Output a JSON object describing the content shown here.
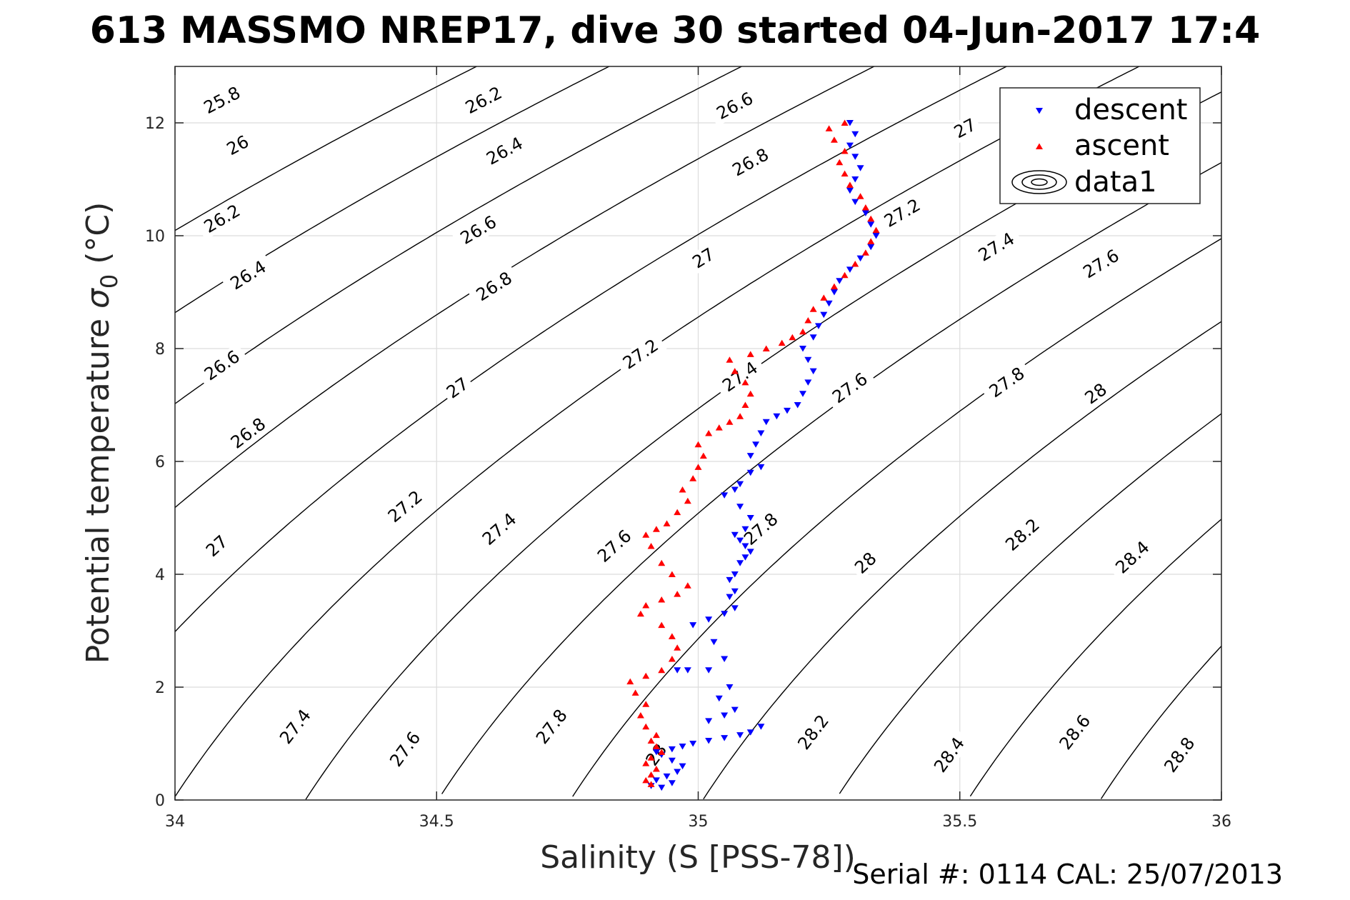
{
  "chart_data": {
    "type": "scatter",
    "title": "613 MASSMO NREP17, dive 30 started 04-Jun-2017 17:4",
    "xlabel": "Salinity (S [PSS-78])",
    "ylabel_main": "Potential temperature ",
    "ylabel_sigma": "σ",
    "ylabel_sub": "0",
    "ylabel_unit": " (°C)",
    "xlim": [
      34,
      36
    ],
    "ylim": [
      0,
      13
    ],
    "xticks": [
      34,
      34.5,
      35,
      35.5,
      36
    ],
    "xtick_labels": [
      "34",
      "34.5",
      "35",
      "35.5",
      "36"
    ],
    "yticks": [
      0,
      2,
      4,
      6,
      8,
      10,
      12
    ],
    "ytick_labels": [
      "0",
      "2",
      "4",
      "6",
      "8",
      "10",
      "12"
    ],
    "grid": true,
    "legend_position": "top-right",
    "legend": [
      "descent",
      "ascent",
      "data1"
    ],
    "density_contour_levels": [
      25.8,
      26,
      26.2,
      26.4,
      26.6,
      26.8,
      27,
      27.2,
      27.4,
      27.6,
      27.8,
      28,
      28.2,
      28.4,
      28.6,
      28.8
    ],
    "density_contour_labels": [
      {
        "text": "25.8",
        "x": 34.09,
        "y": 12.4
      },
      {
        "text": "26",
        "x": 34.12,
        "y": 11.6
      },
      {
        "text": "26.2",
        "x": 34.09,
        "y": 10.3
      },
      {
        "text": "26.4",
        "x": 34.14,
        "y": 9.3
      },
      {
        "text": "26.6",
        "x": 34.09,
        "y": 7.7
      },
      {
        "text": "26.8",
        "x": 34.14,
        "y": 6.5
      },
      {
        "text": "27",
        "x": 34.08,
        "y": 4.5
      },
      {
        "text": "27.4",
        "x": 34.23,
        "y": 1.3
      },
      {
        "text": "26.2",
        "x": 34.59,
        "y": 12.4
      },
      {
        "text": "26.4",
        "x": 34.63,
        "y": 11.5
      },
      {
        "text": "26.6",
        "x": 34.58,
        "y": 10.1
      },
      {
        "text": "26.8",
        "x": 34.61,
        "y": 9.1
      },
      {
        "text": "27",
        "x": 34.54,
        "y": 7.3
      },
      {
        "text": "27.2",
        "x": 34.44,
        "y": 5.2
      },
      {
        "text": "27.4",
        "x": 34.62,
        "y": 4.8
      },
      {
        "text": "27.6",
        "x": 34.44,
        "y": 0.9
      },
      {
        "text": "27.6",
        "x": 34.84,
        "y": 4.5
      },
      {
        "text": "27.8",
        "x": 34.72,
        "y": 1.3
      },
      {
        "text": "26.6",
        "x": 35.07,
        "y": 12.3
      },
      {
        "text": "26.8",
        "x": 35.1,
        "y": 11.3
      },
      {
        "text": "27",
        "x": 35.01,
        "y": 9.6
      },
      {
        "text": "27.2",
        "x": 34.89,
        "y": 7.9
      },
      {
        "text": "27.4",
        "x": 35.08,
        "y": 7.5
      },
      {
        "text": "27.8",
        "x": 35.12,
        "y": 4.8
      },
      {
        "text": "27.6",
        "x": 35.29,
        "y": 7.3
      },
      {
        "text": "28",
        "x": 34.92,
        "y": 0.8
      },
      {
        "text": "27",
        "x": 35.51,
        "y": 11.9
      },
      {
        "text": "27.2",
        "x": 35.39,
        "y": 10.4
      },
      {
        "text": "27.4",
        "x": 35.57,
        "y": 9.8
      },
      {
        "text": "27.6",
        "x": 35.77,
        "y": 9.5
      },
      {
        "text": "27.8",
        "x": 35.59,
        "y": 7.4
      },
      {
        "text": "28",
        "x": 35.76,
        "y": 7.2
      },
      {
        "text": "28",
        "x": 35.32,
        "y": 4.2
      },
      {
        "text": "28.2",
        "x": 35.62,
        "y": 4.7
      },
      {
        "text": "28.4",
        "x": 35.83,
        "y": 4.3
      },
      {
        "text": "28.2",
        "x": 35.22,
        "y": 1.2
      },
      {
        "text": "28.4",
        "x": 35.48,
        "y": 0.8
      },
      {
        "text": "28.6",
        "x": 35.72,
        "y": 1.2
      },
      {
        "text": "28.8",
        "x": 35.92,
        "y": 0.8
      }
    ],
    "series": [
      {
        "name": "descent",
        "color": "#0000ff",
        "marker": "triangle-down",
        "points": [
          [
            34.91,
            0.25
          ],
          [
            34.93,
            0.22
          ],
          [
            34.95,
            0.3
          ],
          [
            34.92,
            0.35
          ],
          [
            34.94,
            0.42
          ],
          [
            34.96,
            0.5
          ],
          [
            34.97,
            0.6
          ],
          [
            34.95,
            0.7
          ],
          [
            34.93,
            0.8
          ],
          [
            34.92,
            0.85
          ],
          [
            34.95,
            0.9
          ],
          [
            34.97,
            0.95
          ],
          [
            34.99,
            1.0
          ],
          [
            35.02,
            1.05
          ],
          [
            35.05,
            1.1
          ],
          [
            35.08,
            1.15
          ],
          [
            35.1,
            1.2
          ],
          [
            35.12,
            1.3
          ],
          [
            35.02,
            1.4
          ],
          [
            35.05,
            1.5
          ],
          [
            35.07,
            1.6
          ],
          [
            35.04,
            1.8
          ],
          [
            35.06,
            2.0
          ],
          [
            35.02,
            2.3
          ],
          [
            34.98,
            2.3
          ],
          [
            34.96,
            2.3
          ],
          [
            35.05,
            2.5
          ],
          [
            35.03,
            2.8
          ],
          [
            34.99,
            3.1
          ],
          [
            35.02,
            3.2
          ],
          [
            35.05,
            3.3
          ],
          [
            35.07,
            3.4
          ],
          [
            35.06,
            3.6
          ],
          [
            35.07,
            3.7
          ],
          [
            35.06,
            3.9
          ],
          [
            35.07,
            4.0
          ],
          [
            35.08,
            4.2
          ],
          [
            35.09,
            4.3
          ],
          [
            35.1,
            4.4
          ],
          [
            35.09,
            4.5
          ],
          [
            35.08,
            4.6
          ],
          [
            35.07,
            4.7
          ],
          [
            35.09,
            4.8
          ],
          [
            35.1,
            5.0
          ],
          [
            35.08,
            5.2
          ],
          [
            35.05,
            5.4
          ],
          [
            35.07,
            5.5
          ],
          [
            35.08,
            5.6
          ],
          [
            35.1,
            5.8
          ],
          [
            35.12,
            5.9
          ],
          [
            35.1,
            6.1
          ],
          [
            35.11,
            6.3
          ],
          [
            35.12,
            6.5
          ],
          [
            35.13,
            6.7
          ],
          [
            35.15,
            6.8
          ],
          [
            35.17,
            6.9
          ],
          [
            35.19,
            7.0
          ],
          [
            35.2,
            7.2
          ],
          [
            35.21,
            7.4
          ],
          [
            35.22,
            7.6
          ],
          [
            35.21,
            7.8
          ],
          [
            35.2,
            8.0
          ],
          [
            35.22,
            8.2
          ],
          [
            35.23,
            8.4
          ],
          [
            35.24,
            8.6
          ],
          [
            35.25,
            8.8
          ],
          [
            35.26,
            9.0
          ],
          [
            35.27,
            9.2
          ],
          [
            35.29,
            9.4
          ],
          [
            35.31,
            9.6
          ],
          [
            35.33,
            9.8
          ],
          [
            35.34,
            10.0
          ],
          [
            35.33,
            10.2
          ],
          [
            35.32,
            10.4
          ],
          [
            35.3,
            10.6
          ],
          [
            35.29,
            10.8
          ],
          [
            35.3,
            11.0
          ],
          [
            35.31,
            11.2
          ],
          [
            35.3,
            11.4
          ],
          [
            35.29,
            11.6
          ],
          [
            35.3,
            11.8
          ],
          [
            35.29,
            12.0
          ]
        ]
      },
      {
        "name": "ascent",
        "color": "#ff0000",
        "marker": "triangle-up",
        "points": [
          [
            34.91,
            0.28
          ],
          [
            34.9,
            0.35
          ],
          [
            34.91,
            0.45
          ],
          [
            34.92,
            0.55
          ],
          [
            34.9,
            0.65
          ],
          [
            34.91,
            0.75
          ],
          [
            34.93,
            0.85
          ],
          [
            34.92,
            0.95
          ],
          [
            34.91,
            1.05
          ],
          [
            34.92,
            1.15
          ],
          [
            34.9,
            1.3
          ],
          [
            34.89,
            1.5
          ],
          [
            34.9,
            1.7
          ],
          [
            34.88,
            1.9
          ],
          [
            34.87,
            2.1
          ],
          [
            34.9,
            2.2
          ],
          [
            34.93,
            2.3
          ],
          [
            34.95,
            2.5
          ],
          [
            34.96,
            2.7
          ],
          [
            34.95,
            2.9
          ],
          [
            34.93,
            3.1
          ],
          [
            34.89,
            3.3
          ],
          [
            34.9,
            3.45
          ],
          [
            34.93,
            3.55
          ],
          [
            34.96,
            3.65
          ],
          [
            34.98,
            3.8
          ],
          [
            34.95,
            4.0
          ],
          [
            34.93,
            4.2
          ],
          [
            34.91,
            4.5
          ],
          [
            34.9,
            4.7
          ],
          [
            34.92,
            4.8
          ],
          [
            34.94,
            4.9
          ],
          [
            34.96,
            5.1
          ],
          [
            34.98,
            5.3
          ],
          [
            34.97,
            5.5
          ],
          [
            34.99,
            5.7
          ],
          [
            35.0,
            5.9
          ],
          [
            35.01,
            6.1
          ],
          [
            35.0,
            6.3
          ],
          [
            35.02,
            6.5
          ],
          [
            35.04,
            6.6
          ],
          [
            35.06,
            6.7
          ],
          [
            35.08,
            6.8
          ],
          [
            35.09,
            7.0
          ],
          [
            35.1,
            7.2
          ],
          [
            35.09,
            7.4
          ],
          [
            35.07,
            7.6
          ],
          [
            35.06,
            7.8
          ],
          [
            35.1,
            7.9
          ],
          [
            35.13,
            8.0
          ],
          [
            35.16,
            8.1
          ],
          [
            35.18,
            8.2
          ],
          [
            35.2,
            8.3
          ],
          [
            35.21,
            8.5
          ],
          [
            35.22,
            8.7
          ],
          [
            35.24,
            8.9
          ],
          [
            35.26,
            9.1
          ],
          [
            35.28,
            9.3
          ],
          [
            35.3,
            9.5
          ],
          [
            35.32,
            9.7
          ],
          [
            35.33,
            9.9
          ],
          [
            35.34,
            10.1
          ],
          [
            35.33,
            10.3
          ],
          [
            35.32,
            10.5
          ],
          [
            35.31,
            10.7
          ],
          [
            35.29,
            10.9
          ],
          [
            35.28,
            11.1
          ],
          [
            35.27,
            11.3
          ],
          [
            35.28,
            11.5
          ],
          [
            35.26,
            11.7
          ],
          [
            35.25,
            11.9
          ],
          [
            35.28,
            12.0
          ]
        ]
      }
    ]
  },
  "footer": {
    "serial_text": "Serial #: 0114  CAL: 25/07/2013"
  }
}
